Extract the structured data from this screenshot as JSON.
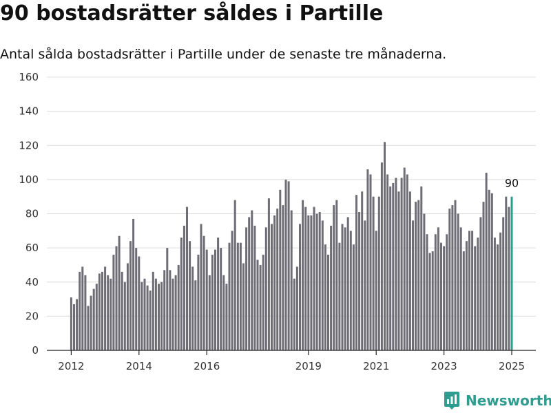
{
  "title": "90 bostadsrätter såldes i Partille",
  "subtitle": "Antal sålda bostadsrätter i Partille under de senaste tre månaderna.",
  "brand": "Newsworthy",
  "colors": {
    "bar": "#6e6d75",
    "highlight": "#2b9c8f",
    "grid": "#dcdcdc"
  },
  "chart_data": {
    "type": "bar",
    "x_start": "2012-01",
    "x_ticks": [
      "2012",
      "2014",
      "2016",
      "2019",
      "2021",
      "2023",
      "2025"
    ],
    "ylim": [
      0,
      160
    ],
    "y_ticks": [
      0,
      20,
      40,
      60,
      80,
      100,
      120,
      140,
      160
    ],
    "grid": true,
    "highlight_last": true,
    "annotation": "90",
    "values": [
      31,
      27,
      30,
      46,
      49,
      44,
      26,
      32,
      36,
      39,
      45,
      46,
      49,
      44,
      42,
      56,
      61,
      67,
      46,
      40,
      51,
      64,
      77,
      60,
      55,
      40,
      42,
      38,
      35,
      46,
      42,
      39,
      40,
      47,
      60,
      47,
      42,
      44,
      50,
      66,
      73,
      84,
      64,
      49,
      41,
      56,
      74,
      67,
      59,
      44,
      56,
      59,
      66,
      60,
      44,
      39,
      63,
      70,
      88,
      63,
      63,
      51,
      72,
      78,
      82,
      73,
      53,
      50,
      56,
      72,
      89,
      74,
      79,
      83,
      94,
      85,
      100,
      99,
      82,
      42,
      49,
      74,
      88,
      84,
      79,
      79,
      84,
      80,
      81,
      76,
      62,
      56,
      73,
      85,
      88,
      63,
      74,
      72,
      78,
      70,
      62,
      91,
      81,
      93,
      76,
      106,
      103,
      90,
      70,
      90,
      110,
      122,
      103,
      96,
      98,
      101,
      93,
      101,
      107,
      103,
      93,
      76,
      87,
      88,
      96,
      80,
      68,
      57,
      58,
      68,
      72,
      63,
      61,
      68,
      83,
      85,
      88,
      80,
      72,
      58,
      64,
      70,
      70,
      61,
      66,
      78,
      87,
      104,
      94,
      92,
      66,
      62,
      69,
      78,
      90,
      84,
      90
    ]
  }
}
